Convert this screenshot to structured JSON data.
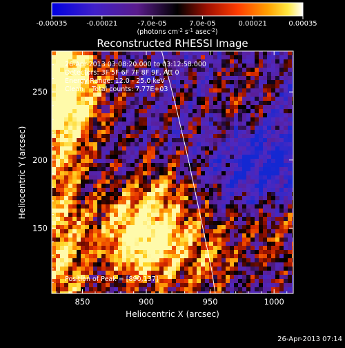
{
  "colorbar": {
    "tick_labels": [
      "-0.00035",
      "-0.00021",
      "-7.0e-05",
      "7.0e-05",
      "0.00021",
      "0.00035"
    ],
    "unit_parts": [
      "(photons cm",
      "-2",
      " s",
      "-1",
      " asec",
      "-2",
      ")"
    ],
    "range": [
      -0.00035,
      0.00035
    ],
    "colormap": "blue-purple-red-yellow-white"
  },
  "chart_data": {
    "type": "heatmap",
    "title": "Reconstructed RHESSI Image",
    "xlabel": "Heliocentric X (arcsec)",
    "ylabel": "Heliocentric Y (arcsec)",
    "xlim": [
      826,
      1015
    ],
    "ylim": [
      102,
      280
    ],
    "x_ticks": [
      850,
      900,
      950,
      1000
    ],
    "y_ticks": [
      150,
      200,
      250
    ],
    "x_tick_labels": [
      "850",
      "900",
      "950",
      "1000"
    ],
    "y_tick_labels": [
      "150",
      "200",
      "250"
    ],
    "annotations": [
      "26-Apr-2013 03:08:20.000 to 03:12:58.000",
      "Detectors: 3F 5F 6F 7F 8F 9F, Att 0",
      "Energy Range: 12.0 - 25.0 keV",
      "Clean    Total counts: 7.77E+03"
    ],
    "peak_label": "Position of Peak = [890,137]",
    "peak_position": [
      890,
      137
    ],
    "limb_curve": [
      [
        912,
        280
      ],
      [
        923,
        240
      ],
      [
        933,
        200
      ],
      [
        942,
        160
      ],
      [
        951,
        120
      ],
      [
        954,
        102
      ]
    ],
    "hotspots": [
      {
        "x": 890,
        "y": 140,
        "level": 1.0
      },
      {
        "x": 840,
        "y": 250,
        "level": 0.85
      },
      {
        "x": 905,
        "y": 170,
        "level": 0.6
      },
      {
        "x": 940,
        "y": 130,
        "level": 0.55
      },
      {
        "x": 985,
        "y": 240,
        "level": 0.55
      },
      {
        "x": 1005,
        "y": 150,
        "level": 0.4
      }
    ],
    "coldspots": [
      {
        "x": 990,
        "y": 200,
        "level": -0.7
      },
      {
        "x": 1005,
        "y": 240,
        "level": -0.4
      }
    ]
  },
  "footer_timestamp": "26-Apr-2013 07:14"
}
